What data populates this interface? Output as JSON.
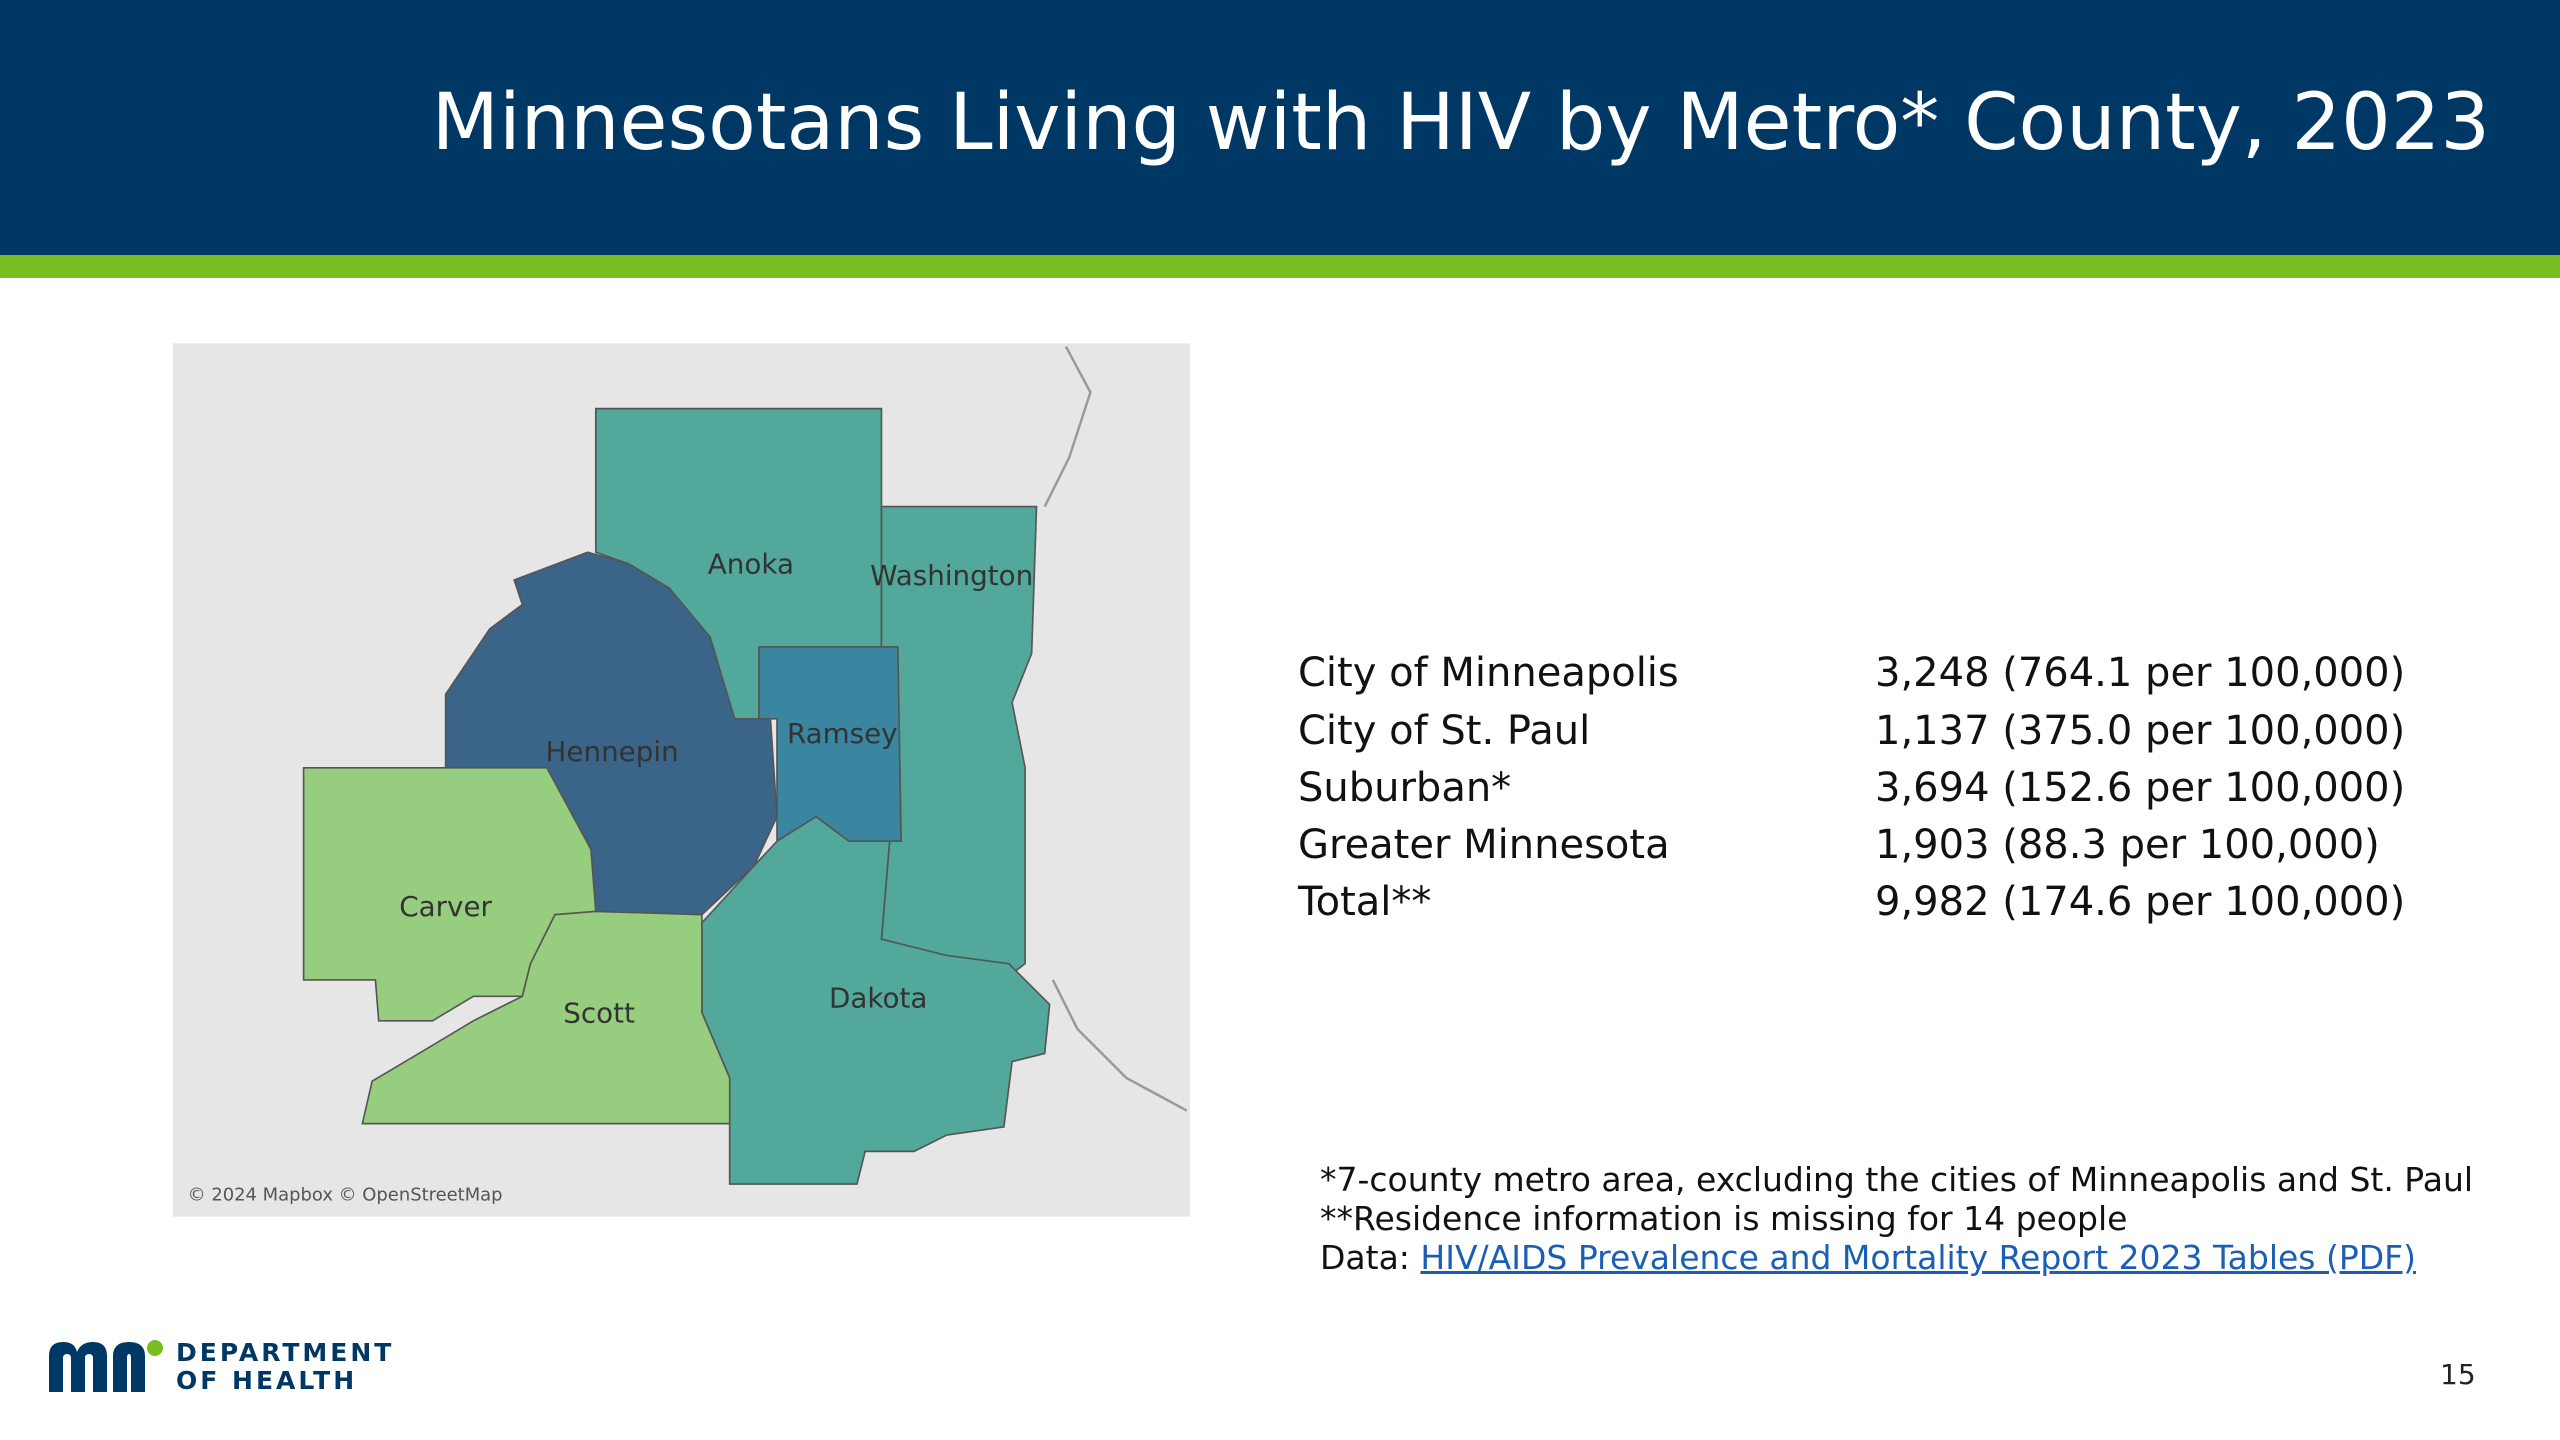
{
  "header": {
    "title": "Minnesotans Living with HIV by Metro* County, 2023"
  },
  "map": {
    "counties": [
      "Anoka",
      "Washington",
      "Hennepin",
      "Ramsey",
      "Carver",
      "Scott",
      "Dakota"
    ],
    "attribution": "© 2024 Mapbox © OpenStreetMap"
  },
  "table": {
    "rows": [
      [
        "City of Minneapolis",
        "3,248 (764.1 per 100,000)"
      ],
      [
        "City of St. Paul",
        "1,137 (375.0 per 100,000)"
      ],
      [
        "Suburban*",
        "3,694 (152.6 per 100,000)"
      ],
      [
        "Greater Minnesota",
        "1,903 (88.3 per 100,000)"
      ],
      [
        "Total**",
        "9,982 (174.6 per 100,000)"
      ]
    ]
  },
  "notes": {
    "lines": [
      "*7-county metro area, excluding the cities of Minneapolis and St. Paul",
      "**Residence information is missing for 14 people"
    ],
    "data_prefix": "Data:",
    "link": "HIV/AIDS Prevalence and Mortality Report 2023 Tables (PDF)"
  },
  "footer": {
    "logo_line1": "DEPARTMENT",
    "logo_line2": "OF HEALTH",
    "page_number": "15"
  }
}
